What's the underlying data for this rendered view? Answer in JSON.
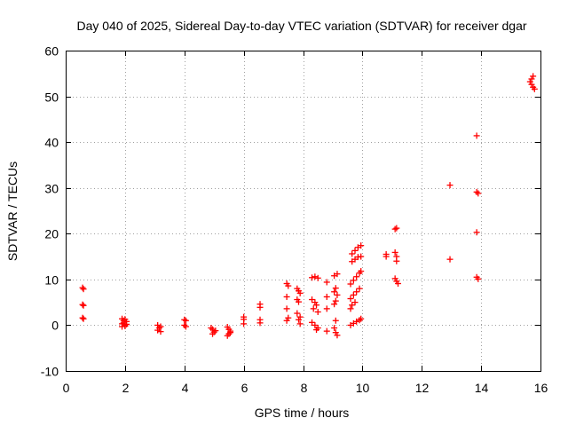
{
  "chart_data": {
    "type": "scatter",
    "title": "Day 040 of 2025, Sidereal Day-to-day VTEC variation (SDTVAR) for receiver dgar",
    "xlabel": "GPS time / hours",
    "ylabel": "SDTVAR / TECUs",
    "xlim": [
      0,
      16
    ],
    "ylim": [
      -10,
      60
    ],
    "xticks": [
      0,
      2,
      4,
      6,
      8,
      10,
      12,
      14,
      16
    ],
    "yticks": [
      -10,
      0,
      10,
      20,
      30,
      40,
      50,
      60
    ],
    "grid": true,
    "marker": "+",
    "color": "#ff0000",
    "series": [
      {
        "name": "SDTVAR",
        "points": [
          [
            0.57,
            8.2
          ],
          [
            0.6,
            7.9
          ],
          [
            0.57,
            4.5
          ],
          [
            0.6,
            4.3
          ],
          [
            0.57,
            1.6
          ],
          [
            0.6,
            1.4
          ],
          [
            1.9,
            1.4
          ],
          [
            1.95,
            1.0
          ],
          [
            2.0,
            1.3
          ],
          [
            2.05,
            0.8
          ],
          [
            1.9,
            0.3
          ],
          [
            1.95,
            0.5
          ],
          [
            2.0,
            0.0
          ],
          [
            2.05,
            0.2
          ],
          [
            1.9,
            -0.3
          ],
          [
            2.0,
            -0.2
          ],
          [
            3.1,
            0.0
          ],
          [
            3.15,
            -0.6
          ],
          [
            3.2,
            -0.3
          ],
          [
            3.1,
            -1.1
          ],
          [
            3.2,
            -1.4
          ],
          [
            4.0,
            1.2
          ],
          [
            4.05,
            1.0
          ],
          [
            4.0,
            0.0
          ],
          [
            4.05,
            -0.3
          ],
          [
            4.9,
            -0.6
          ],
          [
            4.95,
            -0.9
          ],
          [
            5.0,
            -1.5
          ],
          [
            4.95,
            -1.9
          ],
          [
            5.05,
            -1.2
          ],
          [
            5.45,
            -0.4
          ],
          [
            5.5,
            -0.9
          ],
          [
            5.55,
            -1.3
          ],
          [
            5.5,
            -1.9
          ],
          [
            5.45,
            -2.3
          ],
          [
            5.55,
            -1.6
          ],
          [
            6.0,
            1.8
          ],
          [
            6.0,
            1.3
          ],
          [
            6.0,
            0.3
          ],
          [
            6.55,
            4.6
          ],
          [
            6.55,
            3.9
          ],
          [
            6.55,
            1.2
          ],
          [
            6.55,
            0.5
          ],
          [
            7.45,
            9.1
          ],
          [
            7.5,
            8.6
          ],
          [
            7.45,
            6.2
          ],
          [
            7.45,
            3.6
          ],
          [
            7.5,
            1.6
          ],
          [
            7.45,
            1.0
          ],
          [
            7.8,
            8.0
          ],
          [
            7.85,
            7.5
          ],
          [
            7.9,
            7.0
          ],
          [
            7.8,
            5.6
          ],
          [
            7.85,
            5.1
          ],
          [
            7.8,
            2.6
          ],
          [
            7.9,
            1.8
          ],
          [
            7.85,
            1.2
          ],
          [
            7.9,
            0.3
          ],
          [
            8.3,
            10.4
          ],
          [
            8.4,
            10.6
          ],
          [
            8.5,
            10.3
          ],
          [
            8.3,
            5.6
          ],
          [
            8.4,
            5.0
          ],
          [
            8.45,
            4.4
          ],
          [
            8.35,
            3.6
          ],
          [
            8.5,
            2.9
          ],
          [
            8.3,
            0.6
          ],
          [
            8.4,
            0.0
          ],
          [
            8.5,
            -0.6
          ],
          [
            8.45,
            -1.0
          ],
          [
            8.8,
            9.4
          ],
          [
            8.8,
            6.2
          ],
          [
            8.8,
            3.6
          ],
          [
            8.8,
            -1.3
          ],
          [
            9.05,
            10.8
          ],
          [
            9.15,
            11.2
          ],
          [
            9.1,
            8.1
          ],
          [
            9.05,
            7.3
          ],
          [
            9.15,
            6.6
          ],
          [
            9.1,
            5.3
          ],
          [
            9.05,
            4.6
          ],
          [
            9.1,
            1.0
          ],
          [
            9.05,
            -0.6
          ],
          [
            9.1,
            -1.6
          ],
          [
            9.15,
            -2.2
          ],
          [
            9.65,
            15.6
          ],
          [
            9.75,
            16.3
          ],
          [
            9.85,
            17.0
          ],
          [
            9.95,
            17.4
          ],
          [
            9.65,
            13.9
          ],
          [
            9.75,
            14.4
          ],
          [
            9.85,
            14.9
          ],
          [
            9.95,
            15.0
          ],
          [
            9.6,
            9.0
          ],
          [
            9.7,
            9.8
          ],
          [
            9.8,
            10.6
          ],
          [
            9.9,
            11.4
          ],
          [
            9.95,
            11.8
          ],
          [
            9.6,
            5.8
          ],
          [
            9.7,
            6.6
          ],
          [
            9.8,
            7.3
          ],
          [
            9.9,
            8.0
          ],
          [
            9.6,
            3.6
          ],
          [
            9.65,
            4.4
          ],
          [
            9.75,
            5.0
          ],
          [
            9.6,
            0.0
          ],
          [
            9.7,
            0.4
          ],
          [
            9.8,
            0.8
          ],
          [
            9.9,
            1.1
          ],
          [
            9.95,
            1.4
          ],
          [
            10.8,
            15.5
          ],
          [
            10.8,
            15.0
          ],
          [
            11.1,
            21.0
          ],
          [
            11.15,
            21.2
          ],
          [
            11.1,
            15.9
          ],
          [
            11.15,
            15.0
          ],
          [
            11.15,
            14.0
          ],
          [
            11.1,
            10.2
          ],
          [
            11.15,
            9.6
          ],
          [
            11.2,
            9.1
          ],
          [
            12.95,
            30.6
          ],
          [
            12.95,
            14.4
          ],
          [
            13.85,
            41.4
          ],
          [
            13.85,
            29.1
          ],
          [
            13.9,
            28.8
          ],
          [
            13.85,
            20.3
          ],
          [
            13.85,
            10.5
          ],
          [
            13.9,
            10.1
          ],
          [
            15.65,
            53.2
          ],
          [
            15.7,
            52.6
          ],
          [
            15.75,
            52.0
          ],
          [
            15.8,
            51.6
          ],
          [
            15.75,
            54.4
          ],
          [
            15.7,
            53.8
          ]
        ]
      }
    ]
  }
}
